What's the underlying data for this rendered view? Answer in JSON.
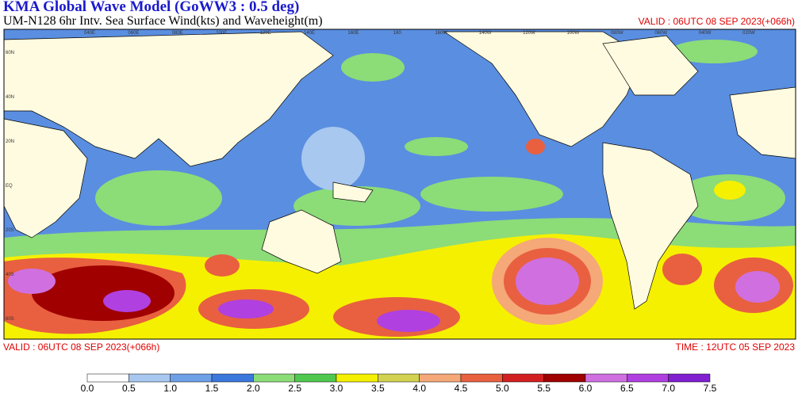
{
  "header": {
    "title": "KMA  Global Wave Model (GoWW3 : 0.5 deg)",
    "subtitle": "UM-N128  6hr Intv. Sea Surface Wind(kts) and Waveheight(m)",
    "valid_top": "VALID : 06UTC 08 SEP 2023(+066h)"
  },
  "footer": {
    "valid": "VALID : 06UTC 08 SEP 2023(+066h)",
    "time": "TIME : 12UTC 05 SEP 2023"
  },
  "map": {
    "lon_labels": [
      "040E",
      "060E",
      "080E",
      "100E",
      "120E",
      "140E",
      "160E",
      "180",
      "160W",
      "140W",
      "120W",
      "100W",
      "080W",
      "060W",
      "040W",
      "020W"
    ],
    "lat_labels": [
      "60N",
      "40N",
      "20N",
      "EQ",
      "20S",
      "40S",
      "60S"
    ]
  },
  "colorbar": {
    "labels": [
      "0.0",
      "0.5",
      "1.0",
      "1.5",
      "2.0",
      "2.5",
      "3.0",
      "3.5",
      "4.0",
      "4.5",
      "5.0",
      "5.5",
      "6.0",
      "6.5",
      "7.0",
      "7.5"
    ],
    "colors": [
      "#ffffff",
      "#a8c8f0",
      "#6ea0e8",
      "#3c78dc",
      "#8cdc78",
      "#50c850",
      "#f5f000",
      "#d2d250",
      "#f5a878",
      "#e86040",
      "#d22020",
      "#a00000",
      "#d070e0",
      "#b040e0",
      "#8020d0"
    ]
  }
}
